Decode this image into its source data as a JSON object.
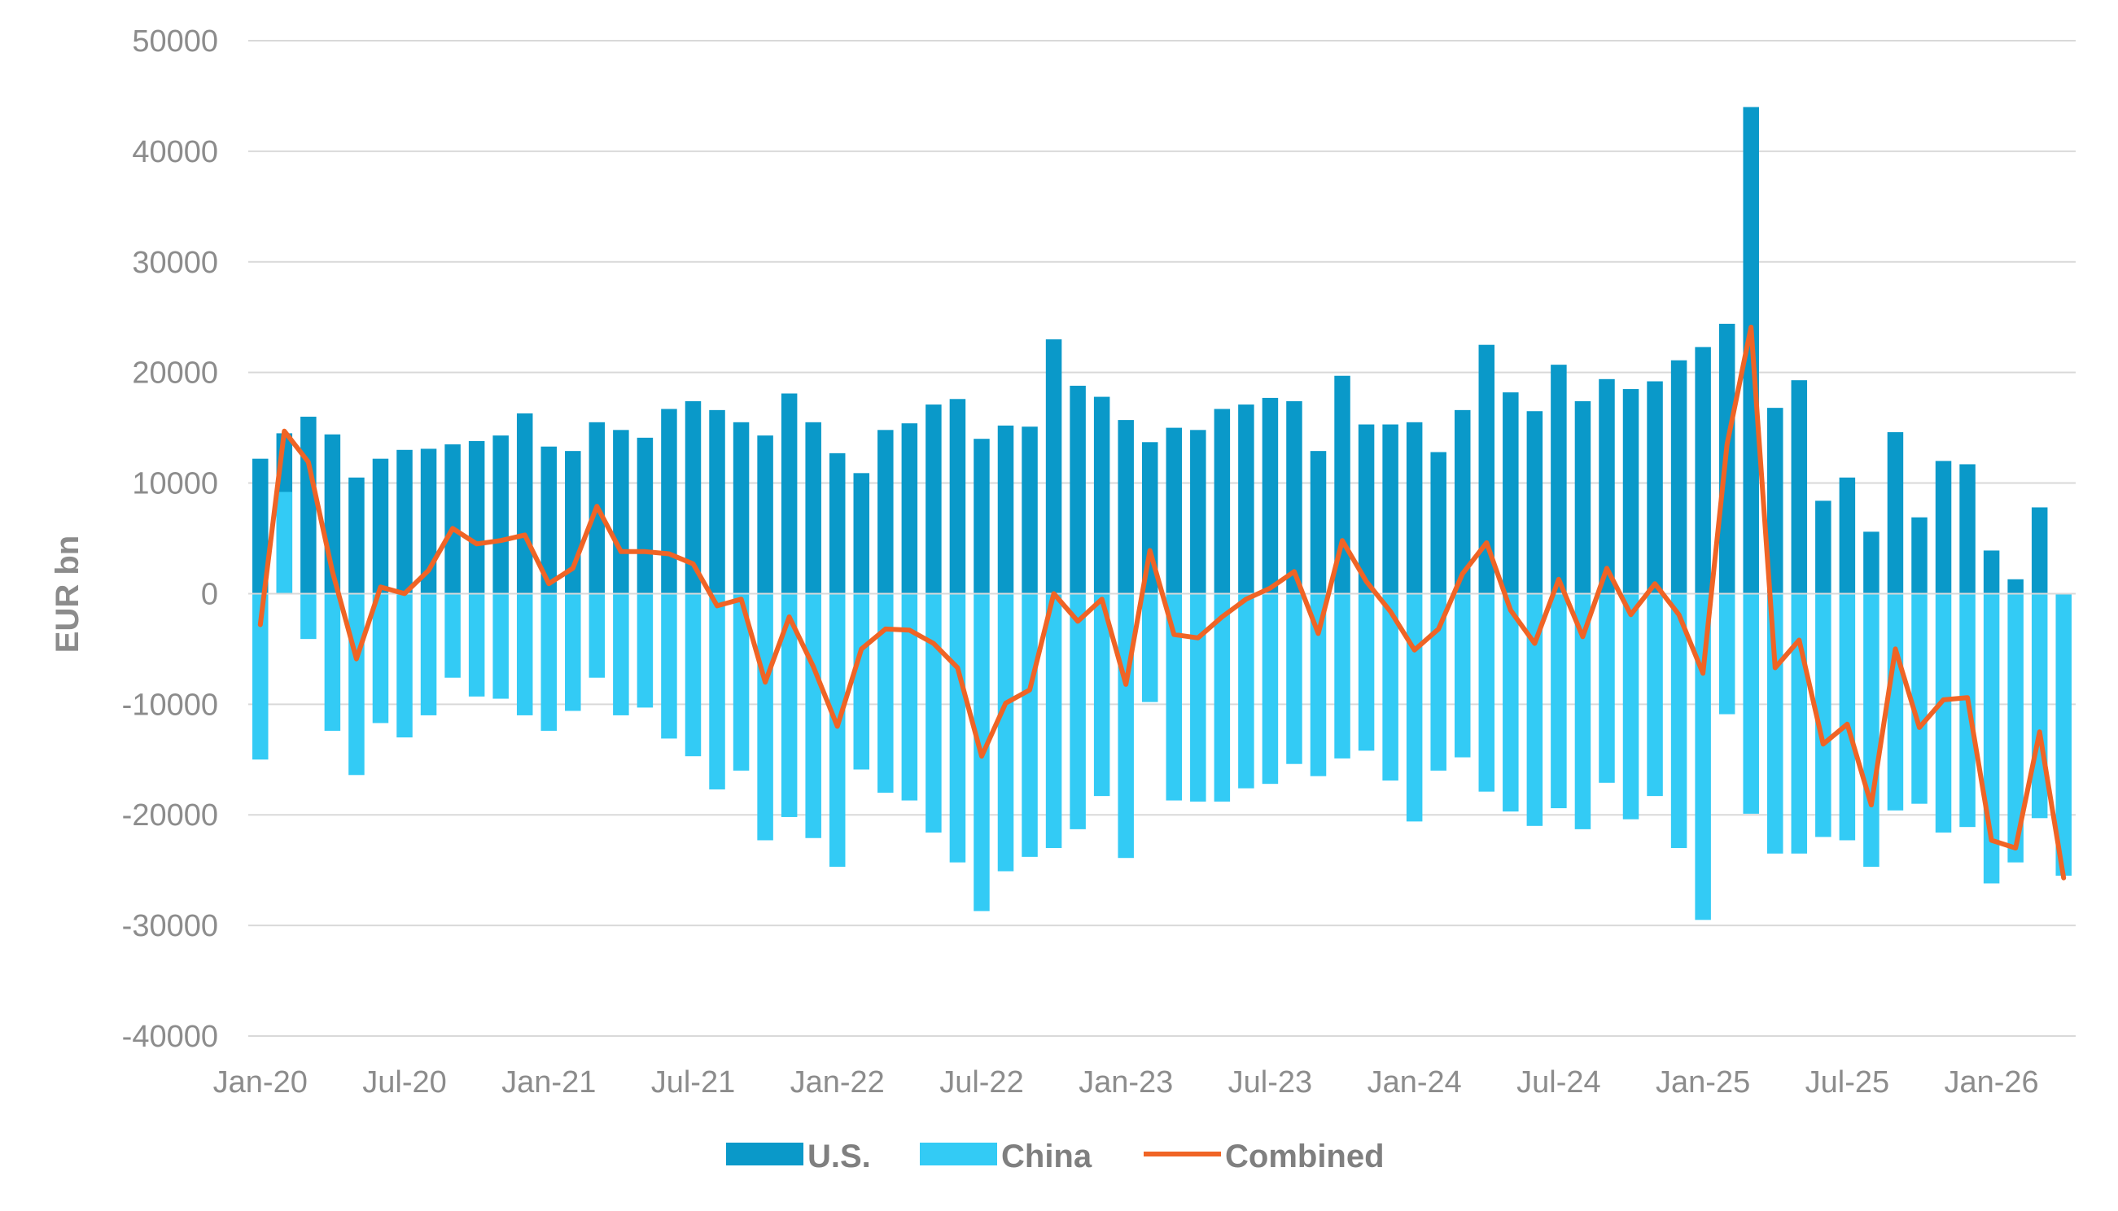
{
  "chart_data": {
    "type": "bar",
    "ylabel": "EUR bn",
    "ylim": [
      -40000,
      50000
    ],
    "yticks": [
      50000,
      40000,
      30000,
      20000,
      10000,
      0,
      -10000,
      -20000,
      -30000,
      -40000
    ],
    "ytick_labels": [
      "50000",
      "40000",
      "30000",
      "20000",
      "10000",
      "0",
      "-10000",
      "-20000",
      "-30000",
      "-40000"
    ],
    "x": [
      "Jan-20",
      "Feb-20",
      "Mar-20",
      "Apr-20",
      "May-20",
      "Jun-20",
      "Jul-20",
      "Aug-20",
      "Sep-20",
      "Oct-20",
      "Nov-20",
      "Dec-20",
      "Jan-21",
      "Feb-21",
      "Mar-21",
      "Apr-21",
      "May-21",
      "Jun-21",
      "Jul-21",
      "Aug-21",
      "Sep-21",
      "Oct-21",
      "Nov-21",
      "Dec-21",
      "Jan-22",
      "Feb-22",
      "Mar-22",
      "Apr-22",
      "May-22",
      "Jun-22",
      "Jul-22",
      "Aug-22",
      "Sep-22",
      "Oct-22",
      "Nov-22",
      "Dec-22",
      "Jan-23",
      "Feb-23",
      "Mar-23",
      "Apr-23",
      "May-23",
      "Jun-23",
      "Jul-23",
      "Aug-23",
      "Sep-23",
      "Oct-23",
      "Nov-23",
      "Dec-23",
      "Jan-24",
      "Feb-24",
      "Mar-24",
      "Apr-24",
      "May-24",
      "Jun-24",
      "Jul-24",
      "Aug-24",
      "Sep-24",
      "Oct-24",
      "Nov-24",
      "Dec-24",
      "Jan-25",
      "Feb-25",
      "Mar-25",
      "Apr-25",
      "May-25",
      "Jun-25",
      "Jul-25",
      "Aug-25",
      "Sep-25",
      "Oct-25",
      "Nov-25",
      "Dec-25",
      "Jan-26",
      "Feb-26",
      "Mar-26",
      "Apr-26"
    ],
    "xtick_labels": [
      "Jan-20",
      "Jul-20",
      "Jan-21",
      "Jul-21",
      "Jan-22",
      "Jul-22",
      "Jan-23",
      "Jul-23",
      "Jan-24",
      "Jul-24",
      "Jan-25",
      "Jul-25",
      "Jan-26"
    ],
    "xtick_step": 6,
    "series": [
      {
        "name": "U.S.",
        "kind": "bar",
        "color": "#0a99c9",
        "values": [
          12200,
          14500,
          16000,
          14400,
          10500,
          12200,
          13000,
          13100,
          13500,
          13800,
          14300,
          16300,
          13300,
          12900,
          15500,
          14800,
          14100,
          16700,
          17400,
          16600,
          15500,
          14300,
          18100,
          15500,
          12700,
          10900,
          14800,
          15400,
          17100,
          17600,
          14000,
          15200,
          15100,
          23000,
          18800,
          17800,
          15700,
          13700,
          15000,
          14800,
          16700,
          17100,
          17700,
          17400,
          12900,
          19700,
          15300,
          15300,
          15500,
          12800,
          16600,
          22500,
          18200,
          16500,
          20700,
          17400,
          19400,
          18500,
          19200,
          21100,
          22300,
          24400,
          44000,
          16800,
          19300,
          8400,
          10500,
          5600,
          14600,
          6900,
          12000,
          11700,
          3900,
          1300,
          7800,
          0
        ]
      },
      {
        "name": "China",
        "kind": "bar",
        "color": "#33cbf5",
        "values": [
          -15000,
          9200,
          -4100,
          -12400,
          -16400,
          -11700,
          -13000,
          -11000,
          -7600,
          -9300,
          -9500,
          -11000,
          -12400,
          -10600,
          -7600,
          -11000,
          -10300,
          -13100,
          -14700,
          -17700,
          -16000,
          -22300,
          -20200,
          -22100,
          -24700,
          -15900,
          -18000,
          -18700,
          -21600,
          -24300,
          -28700,
          -25100,
          -23800,
          -23000,
          -21300,
          -18300,
          -23900,
          -9800,
          -18700,
          -18800,
          -18800,
          -17600,
          -17200,
          -15400,
          -16500,
          -14900,
          -14200,
          -16900,
          -20600,
          -16000,
          -14800,
          -17900,
          -19700,
          -21000,
          -19400,
          -21300,
          -17100,
          -20400,
          -18300,
          -23000,
          -29500,
          -10900,
          -19900,
          -23500,
          -23500,
          -22000,
          -22300,
          -24700,
          -19600,
          -19000,
          -21600,
          -21100,
          -26200,
          -24300,
          -20300,
          -25500
        ]
      },
      {
        "name": "Combined",
        "kind": "line",
        "color": "#f06425",
        "values": [
          -2800,
          14700,
          11900,
          2000,
          -5900,
          600,
          0,
          2100,
          5900,
          4500,
          4800,
          5300,
          900,
          2300,
          7900,
          3800,
          3800,
          3600,
          2700,
          -1100,
          -500,
          -8000,
          -2100,
          -6600,
          -12000,
          -5000,
          -3200,
          -3300,
          -4500,
          -6700,
          -14700,
          -9900,
          -8700,
          0,
          -2500,
          -500,
          -8200,
          3900,
          -3700,
          -4000,
          -2100,
          -500,
          500,
          2000,
          -3600,
          4800,
          1100,
          -1600,
          -5100,
          -3200,
          1800,
          4600,
          -1500,
          -4500,
          1300,
          -3900,
          2300,
          -1900,
          900,
          -1900,
          -7200,
          13500,
          24100,
          -6700,
          -4200,
          -13600,
          -11800,
          -19100,
          -5000,
          -12100,
          -9600,
          -9400,
          -22300,
          -23000,
          -12500,
          -25700
        ]
      }
    ],
    "legend": {
      "position": "bottom",
      "entries": [
        "U.S.",
        "China",
        "Combined"
      ]
    },
    "grid": true
  }
}
